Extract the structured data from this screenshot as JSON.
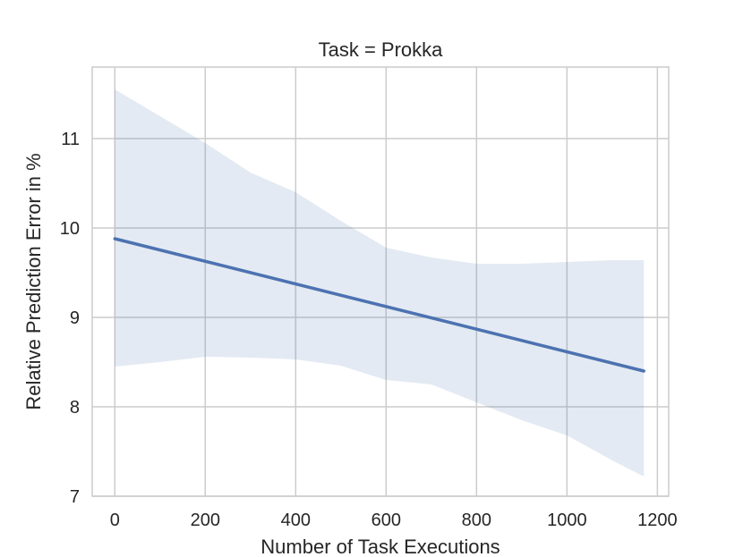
{
  "chart_data": {
    "type": "line",
    "title": "Task = Prokka",
    "xlabel": "Number of Task Executions",
    "ylabel": "Relative Prediction Error in %",
    "xlim": [
      -50,
      1225
    ],
    "ylim": [
      7,
      11.8
    ],
    "xticks": [
      0,
      200,
      400,
      600,
      800,
      1000,
      1200
    ],
    "yticks": [
      7,
      8,
      9,
      10,
      11
    ],
    "grid": true,
    "legend": "none",
    "series": [
      {
        "type": "line",
        "color": "#4c72b0",
        "x": [
          0,
          1170
        ],
        "y": [
          9.88,
          8.4
        ]
      }
    ],
    "confidence_band": {
      "color": "#4c72b0",
      "x": [
        0,
        100,
        200,
        300,
        400,
        500,
        600,
        700,
        800,
        900,
        1000,
        1100,
        1170
      ],
      "upper": [
        11.55,
        11.25,
        10.95,
        10.62,
        10.4,
        10.08,
        9.78,
        9.67,
        9.6,
        9.6,
        9.62,
        9.64,
        9.64
      ],
      "lower": [
        8.45,
        8.5,
        8.56,
        8.55,
        8.53,
        8.46,
        8.3,
        8.25,
        8.05,
        7.85,
        7.68,
        7.4,
        7.22
      ]
    }
  }
}
